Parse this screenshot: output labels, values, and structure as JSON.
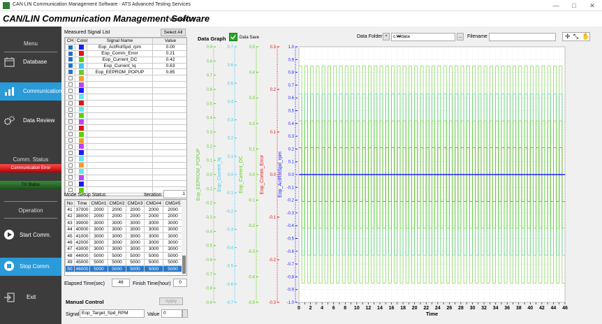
{
  "window": {
    "title": "CAN LIN Communication Management Software  -  ATS Advanced Testing Services",
    "minimize": "—",
    "maximize": "□",
    "close": "✕"
  },
  "header": {
    "title": "CAN/LIN Communication Management Software",
    "version": "- Version 1.0"
  },
  "sidebar": {
    "menu_label": "Menu",
    "database": "Database",
    "communication": "Communication",
    "data_review": "Data Review",
    "comm_status_label": "Comm. Status",
    "comm_error": "Communication Error",
    "tx_status": "TX Status",
    "operation_label": "Operation",
    "start": "Start Comm.",
    "stop": "Stop Comm.",
    "exit": "Exit"
  },
  "signal_list": {
    "title": "Measured Signal List",
    "select_all": "Select All",
    "headers": [
      "CH",
      "Color",
      "Signal Name",
      "Value"
    ],
    "rows": [
      {
        "checked": true,
        "color": "#1a1aff",
        "name": "Eop_ActRotSpd_rpm",
        "value": "0.00"
      },
      {
        "checked": true,
        "color": "#e81010",
        "name": "Eop_Comm_Error",
        "value": "0.21"
      },
      {
        "checked": true,
        "color": "#55d400",
        "name": "Eop_Current_DC",
        "value": "0.42"
      },
      {
        "checked": true,
        "color": "#3cc8f0",
        "name": "Eop_Current_Iq",
        "value": "0.63"
      },
      {
        "checked": true,
        "color": "#66cc33",
        "name": "Eop_EEPROM_POPUP",
        "value": "0.85"
      },
      {
        "checked": false,
        "color": "#f0a020",
        "name": "",
        "value": ""
      },
      {
        "checked": false,
        "color": "#c040ff",
        "name": "",
        "value": ""
      },
      {
        "checked": false,
        "color": "#1a1aff",
        "name": "",
        "value": ""
      },
      {
        "checked": false,
        "color": "#5de8f0",
        "name": "",
        "value": ""
      },
      {
        "checked": false,
        "color": "#e81010",
        "name": "",
        "value": ""
      },
      {
        "checked": false,
        "color": "#5de8f0",
        "name": "",
        "value": ""
      },
      {
        "checked": false,
        "color": "#55d400",
        "name": "",
        "value": ""
      },
      {
        "checked": false,
        "color": "#c040ff",
        "name": "",
        "value": ""
      },
      {
        "checked": false,
        "color": "#e81010",
        "name": "",
        "value": ""
      },
      {
        "checked": false,
        "color": "#55d400",
        "name": "",
        "value": ""
      },
      {
        "checked": false,
        "color": "#f0a020",
        "name": "",
        "value": ""
      },
      {
        "checked": false,
        "color": "#c040ff",
        "name": "",
        "value": ""
      },
      {
        "checked": false,
        "color": "#1a1aff",
        "name": "",
        "value": ""
      },
      {
        "checked": false,
        "color": "#5de8f0",
        "name": "",
        "value": ""
      },
      {
        "checked": false,
        "color": "#f0a020",
        "name": "",
        "value": ""
      },
      {
        "checked": false,
        "color": "#5de8f0",
        "name": "",
        "value": ""
      },
      {
        "checked": false,
        "color": "#c040ff",
        "name": "",
        "value": ""
      },
      {
        "checked": false,
        "color": "#1a1aff",
        "name": "",
        "value": ""
      },
      {
        "checked": false,
        "color": "#55d400",
        "name": "",
        "value": ""
      }
    ]
  },
  "mode_setup": {
    "title": "Mode Setup Status",
    "iteration_label": "Iteration",
    "iteration_value": "1",
    "headers": [
      "No",
      "Time",
      "CMD#1",
      "CMD#2",
      "CMD#3",
      "CMD#4",
      "CMD#5"
    ],
    "rows": [
      [
        "41",
        "37000",
        "2000",
        "2000",
        "2000",
        "2000",
        "2000"
      ],
      [
        "42",
        "38000",
        "2000",
        "2000",
        "2000",
        "2000",
        "2000"
      ],
      [
        "43",
        "39000",
        "3000",
        "3000",
        "3000",
        "3000",
        "3000"
      ],
      [
        "44",
        "40000",
        "3000",
        "3000",
        "3000",
        "3000",
        "3000"
      ],
      [
        "45",
        "41000",
        "3000",
        "3000",
        "3000",
        "3000",
        "3000"
      ],
      [
        "46",
        "42000",
        "3000",
        "3000",
        "3000",
        "3000",
        "3000"
      ],
      [
        "47",
        "43000",
        "3000",
        "3000",
        "3000",
        "3000",
        "3000"
      ],
      [
        "48",
        "44000",
        "5000",
        "5000",
        "5000",
        "5000",
        "5000"
      ],
      [
        "49",
        "45000",
        "5000",
        "5000",
        "5000",
        "5000",
        "5000"
      ],
      [
        "50",
        "46000",
        "5000",
        "5000",
        "5000",
        "5000",
        "5000"
      ]
    ],
    "selected_row": 9
  },
  "elapsed": {
    "label": "Elapsed Time(sec)",
    "value": "46",
    "finish_label": "Finish Time(hour)",
    "finish_value": "0"
  },
  "manual_control": {
    "title": "Manual Control",
    "apply": "Apply",
    "signal_label": "Signal",
    "signal_value": "Eop_Target_Spd_RPM",
    "value_label": "Value",
    "value_value": "0"
  },
  "graph": {
    "title": "Data Graph",
    "data_save": "Data Save",
    "folder_label": "Data Folder",
    "folder_value": "c:₩data",
    "browse": "...",
    "filename_label": "Filename",
    "filename_value": "",
    "tool_icons": [
      "zoom-tool-icon",
      "zoom-fit-icon",
      "pan-tool-icon"
    ]
  },
  "chart_data": {
    "type": "line",
    "xlabel": "Time",
    "xlim": [
      0,
      46
    ],
    "x_ticks": [
      0,
      2,
      4,
      6,
      8,
      10,
      12,
      14,
      16,
      18,
      20,
      22,
      24,
      26,
      28,
      30,
      32,
      34,
      36,
      38,
      40,
      42,
      44,
      46
    ],
    "axes": [
      {
        "name": "Eop_EEPROM_POPUP",
        "color": "#66cc33",
        "range": [
          -0.9,
          0.9
        ],
        "ticks": [
          "0.9",
          "0.8",
          "0.7",
          "0.6",
          "0.5",
          "0.4",
          "0.3",
          "0.2",
          "0.1",
          "0.0",
          "-0.1",
          "-0.2",
          "-0.3",
          "-0.4",
          "-0.5",
          "-0.6",
          "-0.7",
          "-0.8",
          "-0.9"
        ]
      },
      {
        "name": "Eop_Current_Iq",
        "color": "#3cc8f0",
        "range": [
          -0.7,
          0.7
        ],
        "ticks": [
          "0.7",
          "0.6",
          "0.5",
          "0.4",
          "0.3",
          "0.2",
          "0.1",
          "0.0",
          "-0.1",
          "-0.2",
          "-0.3",
          "-0.4",
          "-0.5",
          "-0.6",
          "-0.7"
        ]
      },
      {
        "name": "Eop_Current_DC",
        "color": "#55d400",
        "range": [
          -0.5,
          0.5
        ],
        "ticks": [
          "0.5",
          "0.4",
          "0.3",
          "0.2",
          "0.1",
          "0.0",
          "-0.1",
          "-0.2",
          "-0.3",
          "-0.4",
          "-0.5"
        ]
      },
      {
        "name": "Eop_Comm_Error",
        "color": "#e81010",
        "range": [
          -0.3,
          0.3
        ],
        "ticks": [
          "0.3",
          "0.2",
          "0.1",
          "0.0",
          "-0.1",
          "-0.2",
          "-0.3"
        ]
      },
      {
        "name": "Eop_ActRotSpd_rpm",
        "color": "#1a1aff",
        "range": [
          -1.0,
          1.0
        ],
        "ticks": [
          "1.0",
          "0.9",
          "0.8",
          "0.7",
          "0.6",
          "0.5",
          "0.4",
          "0.3",
          "0.2",
          "0.1",
          "0.0",
          "-0.1",
          "-0.2",
          "-0.3",
          "-0.4",
          "-0.5",
          "-0.6",
          "-0.7",
          "-0.8",
          "-0.9",
          "-1.0"
        ]
      }
    ],
    "series": [
      {
        "name": "Eop_ActRotSpd_rpm",
        "color": "#1a1aff",
        "amplitude": 0.0
      },
      {
        "name": "Eop_Comm_Error",
        "color": "#e81010",
        "amplitude": 0.21
      },
      {
        "name": "Eop_Current_DC",
        "color": "#55d400",
        "amplitude": 0.42
      },
      {
        "name": "Eop_Current_Iq",
        "color": "#3cc8f0",
        "amplitude": 0.63
      },
      {
        "name": "Eop_EEPROM_POPUP",
        "color": "#66cc33",
        "amplitude": 0.85
      }
    ],
    "period": 1,
    "grid": true
  }
}
